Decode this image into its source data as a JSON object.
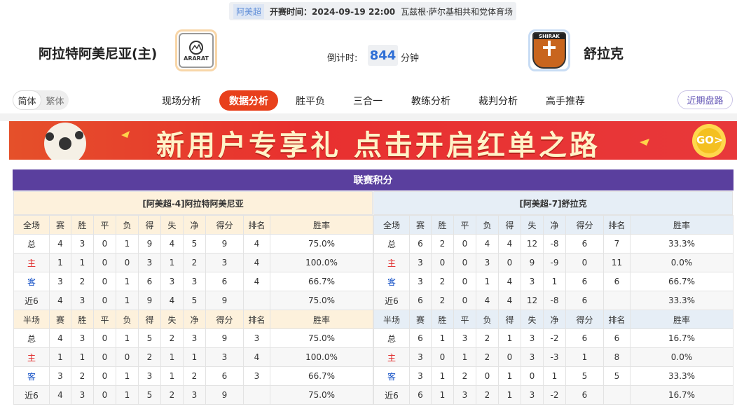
{
  "match": {
    "league": "阿美超",
    "time": "开赛时间：2024-09-19 22:00",
    "venue": "瓦兹根·萨尔基相共和党体育场",
    "home": {
      "name": "阿拉特阿美尼亚(主)",
      "logo_text": "ARARAT"
    },
    "away": {
      "name": "舒拉克",
      "logo_text": "SHIRAK"
    },
    "countdown": {
      "label": "倒计时:",
      "value": "844",
      "unit": "分钟"
    }
  },
  "nav": {
    "lang": [
      "简体",
      "繁体"
    ],
    "tabs": [
      "现场分析",
      "数据分析",
      "胜平负",
      "三合一",
      "教练分析",
      "裁判分析",
      "高手推荐"
    ],
    "active": 1,
    "button": "近期盘路"
  },
  "banner": {
    "text": "新用户专享礼 点击开启红单之路",
    "go": "GO>"
  },
  "standings": {
    "title": "联赛积分",
    "teams": [
      {
        "name": "[阿美超-4]阿拉特阿美尼亚",
        "sections": [
          {
            "header": [
              "全场",
              "赛",
              "胜",
              "平",
              "负",
              "得",
              "失",
              "净",
              "得分",
              "排名",
              "胜率"
            ],
            "rows": [
              [
                "总",
                4,
                3,
                0,
                1,
                9,
                4,
                5,
                9,
                4,
                "75.0%"
              ],
              [
                "主",
                1,
                1,
                0,
                0,
                3,
                1,
                2,
                3,
                4,
                "100.0%"
              ],
              [
                "客",
                3,
                2,
                0,
                1,
                6,
                3,
                3,
                6,
                4,
                "66.7%"
              ],
              [
                "近6",
                4,
                3,
                0,
                1,
                9,
                4,
                5,
                9,
                null,
                "75.0%"
              ]
            ]
          },
          {
            "header": [
              "半场",
              "赛",
              "胜",
              "平",
              "负",
              "得",
              "失",
              "净",
              "得分",
              "排名",
              "胜率"
            ],
            "rows": [
              [
                "总",
                4,
                3,
                0,
                1,
                5,
                2,
                3,
                9,
                3,
                "75.0%"
              ],
              [
                "主",
                1,
                1,
                0,
                0,
                2,
                1,
                1,
                3,
                4,
                "100.0%"
              ],
              [
                "客",
                3,
                2,
                0,
                1,
                3,
                1,
                2,
                6,
                3,
                "66.7%"
              ],
              [
                "近6",
                4,
                3,
                0,
                1,
                5,
                2,
                3,
                9,
                null,
                "75.0%"
              ]
            ]
          }
        ]
      },
      {
        "name": "[阿美超-7]舒拉克",
        "sections": [
          {
            "header": [
              "全场",
              "赛",
              "胜",
              "平",
              "负",
              "得",
              "失",
              "净",
              "得分",
              "排名",
              "胜率"
            ],
            "rows": [
              [
                "总",
                6,
                2,
                0,
                4,
                4,
                12,
                -8,
                6,
                7,
                "33.3%"
              ],
              [
                "主",
                3,
                0,
                0,
                3,
                0,
                9,
                -9,
                0,
                11,
                "0.0%"
              ],
              [
                "客",
                3,
                2,
                0,
                1,
                4,
                3,
                1,
                6,
                6,
                "66.7%"
              ],
              [
                "近6",
                6,
                2,
                0,
                4,
                4,
                12,
                -8,
                6,
                null,
                "33.3%"
              ]
            ]
          },
          {
            "header": [
              "半场",
              "赛",
              "胜",
              "平",
              "负",
              "得",
              "失",
              "净",
              "得分",
              "排名",
              "胜率"
            ],
            "rows": [
              [
                "总",
                6,
                1,
                3,
                2,
                1,
                3,
                -2,
                6,
                6,
                "16.7%"
              ],
              [
                "主",
                3,
                0,
                1,
                2,
                0,
                3,
                -3,
                1,
                8,
                "0.0%"
              ],
              [
                "客",
                3,
                1,
                2,
                0,
                1,
                0,
                1,
                5,
                5,
                "33.3%"
              ],
              [
                "近6",
                6,
                1,
                3,
                2,
                1,
                3,
                -2,
                6,
                null,
                "16.7%"
              ]
            ]
          }
        ]
      }
    ]
  }
}
